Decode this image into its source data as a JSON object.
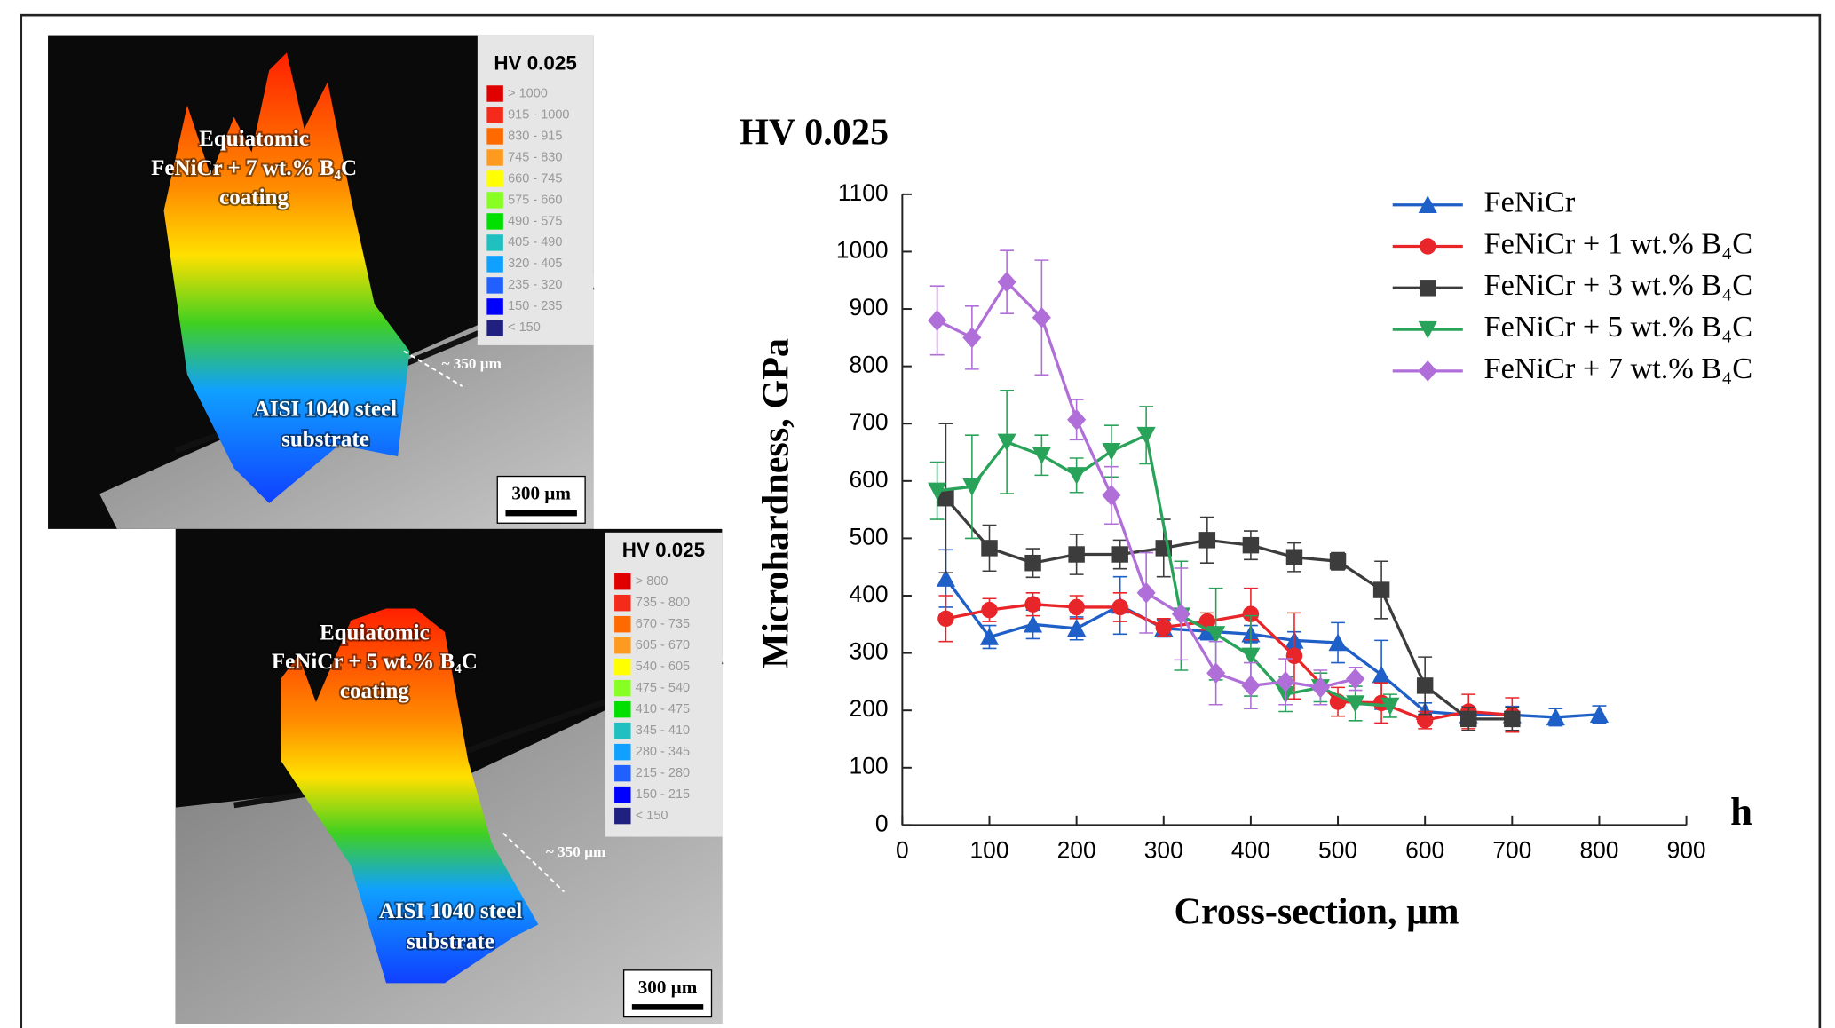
{
  "chart_data": {
    "type": "line",
    "title": "HV 0.025",
    "x_label": "Cross-section, µm",
    "y_label": "Microhardness, GPa",
    "annotation": "h",
    "xlim": [
      0,
      900
    ],
    "ylim": [
      0,
      1100
    ],
    "xticks": [
      0,
      100,
      200,
      300,
      400,
      500,
      600,
      700,
      800,
      900
    ],
    "yticks": [
      0,
      100,
      200,
      300,
      400,
      500,
      600,
      700,
      800,
      900,
      1000,
      1100
    ],
    "series": [
      {
        "name": "FeNiCr",
        "color": "#1f5fc8",
        "marker": "triangle-up",
        "x": [
          50,
          100,
          150,
          200,
          250,
          300,
          350,
          400,
          450,
          500,
          550,
          600,
          650,
          700,
          750,
          800
        ],
        "values": [
          430,
          328,
          350,
          343,
          383,
          343,
          338,
          333,
          322,
          318,
          262,
          198,
          192,
          192,
          188,
          193
        ],
        "errors": [
          50,
          20,
          25,
          20,
          50,
          15,
          15,
          15,
          15,
          35,
          60,
          15,
          15,
          15,
          15,
          15
        ]
      },
      {
        "name": "FeNiCr + 1 wt.% B₄C",
        "color": "#e8262a",
        "marker": "circle",
        "x": [
          50,
          100,
          150,
          200,
          250,
          300,
          350,
          400,
          450,
          500,
          550,
          600,
          650,
          700
        ],
        "values": [
          360,
          375,
          385,
          380,
          380,
          345,
          355,
          368,
          295,
          215,
          213,
          183,
          198,
          192
        ],
        "errors": [
          40,
          20,
          20,
          20,
          25,
          15,
          15,
          45,
          75,
          25,
          35,
          15,
          30,
          30
        ]
      },
      {
        "name": "FeNiCr + 3 wt.% B₄C",
        "color": "#3c3c3c",
        "marker": "square",
        "x": [
          50,
          100,
          150,
          200,
          250,
          300,
          350,
          400,
          450,
          500,
          550,
          600,
          650,
          700
        ],
        "values": [
          570,
          483,
          457,
          472,
          472,
          483,
          497,
          488,
          467,
          460,
          410,
          243,
          185,
          185
        ],
        "errors": [
          130,
          40,
          25,
          35,
          25,
          50,
          40,
          25,
          25,
          15,
          50,
          50,
          20,
          20
        ]
      },
      {
        "name": "FeNiCr + 5 wt.% B₄C",
        "color": "#2aa35a",
        "marker": "triangle-down",
        "x": [
          40,
          80,
          120,
          160,
          200,
          240,
          280,
          320,
          360,
          400,
          440,
          480,
          520,
          560
        ],
        "values": [
          583,
          590,
          668,
          645,
          610,
          652,
          680,
          365,
          333,
          295,
          228,
          240,
          212,
          208
        ],
        "errors": [
          50,
          90,
          90,
          35,
          30,
          45,
          50,
          95,
          80,
          70,
          30,
          25,
          30,
          20
        ]
      },
      {
        "name": "FeNiCr + 7 wt.% B₄C",
        "color": "#b06fd8",
        "marker": "diamond",
        "x": [
          40,
          80,
          120,
          160,
          200,
          240,
          280,
          320,
          360,
          400,
          440,
          480,
          520
        ],
        "values": [
          880,
          850,
          947,
          885,
          707,
          575,
          405,
          368,
          265,
          243,
          250,
          240,
          255
        ],
        "errors": [
          60,
          55,
          55,
          100,
          35,
          50,
          70,
          80,
          55,
          40,
          40,
          30,
          20
        ]
      }
    ]
  },
  "maps": [
    {
      "title": "HV 0.025",
      "coating_label": [
        "Equiatomic",
        "FeNiCr + 7 wt.% B₄C",
        "coating"
      ],
      "substrate_label": [
        "AISI 1040 steel",
        "substrate"
      ],
      "depth_label": "~ 350 µm",
      "scale_bar": "300 µm",
      "legend": [
        {
          "label": "> 1000",
          "color": "#e00000"
        },
        {
          "label": "915 - 1000",
          "color": "#f42a1a"
        },
        {
          "label": "830 - 915",
          "color": "#ff6a00"
        },
        {
          "label": "745 - 830",
          "color": "#ff9a20"
        },
        {
          "label": "660 - 745",
          "color": "#ffff00"
        },
        {
          "label": "575 - 660",
          "color": "#88ff22"
        },
        {
          "label": "490 - 575",
          "color": "#00e000"
        },
        {
          "label": "405 - 490",
          "color": "#20c0c0"
        },
        {
          "label": "320 - 405",
          "color": "#10a0ff"
        },
        {
          "label": "235 - 320",
          "color": "#2060ff"
        },
        {
          "label": "150 - 235",
          "color": "#0000ff"
        },
        {
          "label": "< 150",
          "color": "#202080"
        }
      ]
    },
    {
      "title": "HV 0.025",
      "coating_label": [
        "Equiatomic",
        "FeNiCr + 5 wt.% B₄C",
        "coating"
      ],
      "substrate_label": [
        "AISI 1040 steel",
        "substrate"
      ],
      "depth_label": "~ 350 µm",
      "scale_bar": "300 µm",
      "legend": [
        {
          "label": "> 800",
          "color": "#e00000"
        },
        {
          "label": "735 - 800",
          "color": "#f42a1a"
        },
        {
          "label": "670 - 735",
          "color": "#ff6a00"
        },
        {
          "label": "605 - 670",
          "color": "#ff9a20"
        },
        {
          "label": "540 - 605",
          "color": "#ffff00"
        },
        {
          "label": "475 - 540",
          "color": "#88ff22"
        },
        {
          "label": "410 - 475",
          "color": "#00e000"
        },
        {
          "label": "345 - 410",
          "color": "#20c0c0"
        },
        {
          "label": "280 - 345",
          "color": "#10a0ff"
        },
        {
          "label": "215 - 280",
          "color": "#2060ff"
        },
        {
          "label": "150 - 215",
          "color": "#0000ff"
        },
        {
          "label": "< 150",
          "color": "#202080"
        }
      ]
    }
  ]
}
